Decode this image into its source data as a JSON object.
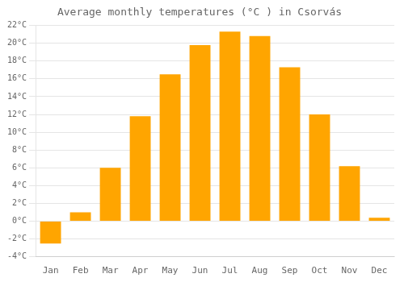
{
  "chart_data": {
    "type": "bar",
    "title": "Average monthly temperatures (°C ) in Csorvás",
    "categories": [
      "Jan",
      "Feb",
      "Mar",
      "Apr",
      "May",
      "Jun",
      "Jul",
      "Aug",
      "Sep",
      "Oct",
      "Nov",
      "Dec"
    ],
    "values": [
      -2.5,
      1.0,
      6.0,
      11.8,
      16.5,
      19.8,
      21.3,
      20.8,
      17.3,
      12.0,
      6.2,
      0.4
    ],
    "color": "#FFA500",
    "ylim": [
      -4,
      22
    ],
    "yticks": [
      {
        "value": -4,
        "label": "-4°C"
      },
      {
        "value": -2,
        "label": "-2°C"
      },
      {
        "value": 0,
        "label": "0°C"
      },
      {
        "value": 2,
        "label": "2°C"
      },
      {
        "value": 4,
        "label": "4°C"
      },
      {
        "value": 6,
        "label": "6°C"
      },
      {
        "value": 8,
        "label": "8°C"
      },
      {
        "value": 10,
        "label": "10°C"
      },
      {
        "value": 12,
        "label": "12°C"
      },
      {
        "value": 14,
        "label": "14°C"
      },
      {
        "value": 16,
        "label": "16°C"
      },
      {
        "value": 18,
        "label": "18°C"
      },
      {
        "value": 20,
        "label": "20°C"
      },
      {
        "value": 22,
        "label": "22°C"
      }
    ],
    "grid": true
  }
}
